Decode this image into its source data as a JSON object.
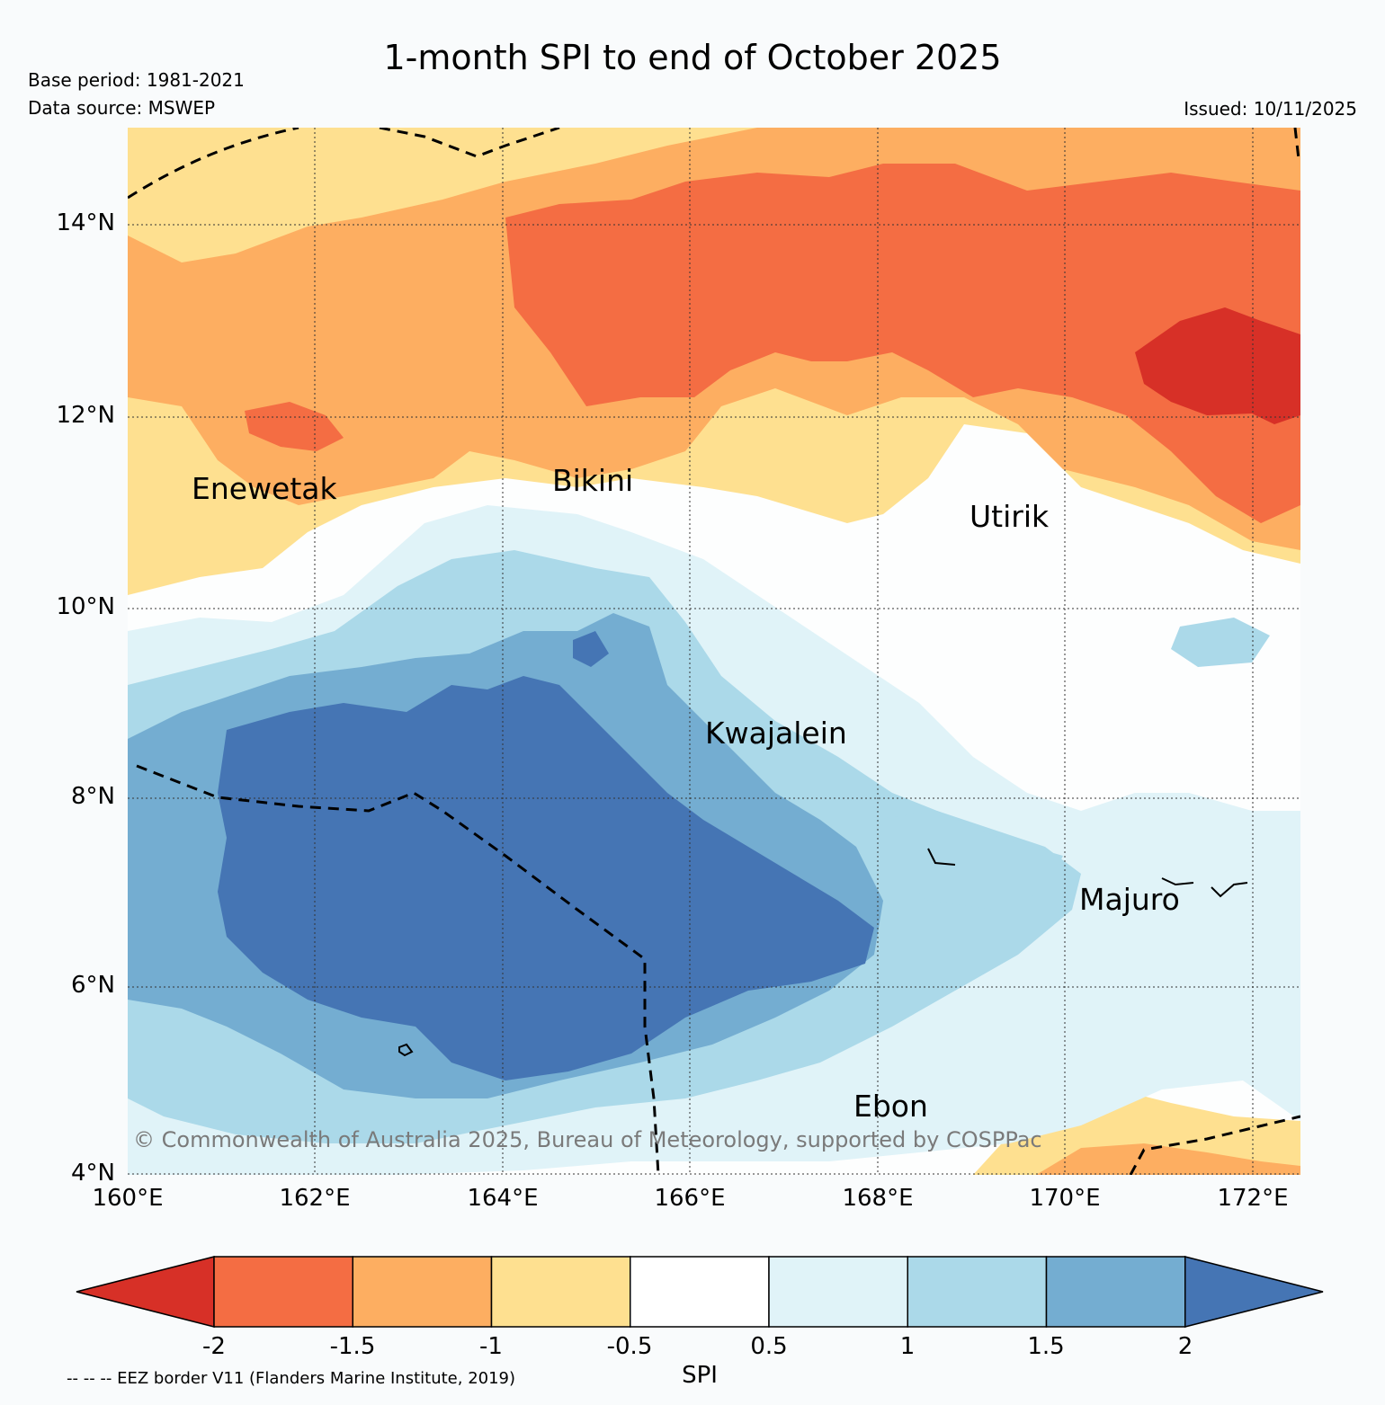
{
  "title": "1-month SPI to end of October 2025",
  "base_period": "Base period: 1981-2021",
  "data_source": "Data source: MSWEP",
  "issued": "Issued: 10/11/2025",
  "copyright": "© Commonwealth of Australia 2025, Bureau of Meteorology, supported by COSPPac",
  "eez_note": "-- -- -- EEZ border V11 (Flanders Marine Institute, 2019)",
  "map": {
    "lon_labels": [
      "160°E",
      "162°E",
      "164°E",
      "166°E",
      "168°E",
      "170°E",
      "172°E"
    ],
    "lat_labels": [
      "14°N",
      "12°N",
      "10°N",
      "8°N",
      "6°N",
      "4°N"
    ],
    "places": [
      "Enewetak",
      "Bikini",
      "Utirik",
      "Kwajalein",
      "Majuro",
      "Ebon"
    ]
  },
  "colorbar": {
    "label": "SPI",
    "ticks": [
      "-2",
      "-1.5",
      "-1",
      "-0.5",
      "0.5",
      "1",
      "1.5",
      "2"
    ],
    "colors": [
      "#d73027",
      "#f46d43",
      "#fdae61",
      "#fee090",
      "#ffffff",
      "#e0f3f8",
      "#abd9e9",
      "#74add1",
      "#4575b4"
    ]
  },
  "colors": {
    "dry_extreme": "#d73027",
    "dry_severe": "#f46d43",
    "dry_moderate": "#fdae61",
    "dry_mild": "#fee090",
    "normal": "#ffffff",
    "wet_mild": "#e0f3f8",
    "wet_moderate": "#abd9e9",
    "wet_severe": "#74add1",
    "wet_extreme": "#4575b4"
  }
}
